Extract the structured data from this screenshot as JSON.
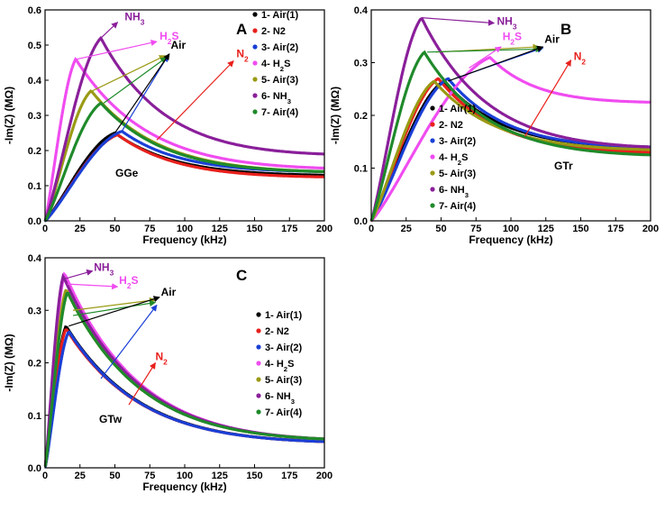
{
  "colors": {
    "air1": "#000000",
    "n2": "#e8201c",
    "air2": "#1a3fd6",
    "h2s": "#f04cf0",
    "air3": "#9a9a14",
    "nh3": "#8a1f9a",
    "air4": "#1f8a2a"
  },
  "chart_data": [
    {
      "panel": "A",
      "type": "scatter",
      "sensor_label": "GGe",
      "xlabel": "Frequency (kHz)",
      "ylabel": "-Im(Z) (MΩ)",
      "xlim": [
        0,
        200
      ],
      "ylim": [
        0,
        0.6
      ],
      "x_ticks": [
        0,
        25,
        50,
        75,
        100,
        125,
        150,
        175,
        200
      ],
      "x_tick_labels": [
        "0",
        "25",
        "50",
        "75",
        "100",
        "125",
        "150",
        "175",
        "200"
      ],
      "y_ticks": [
        0.0,
        0.1,
        0.2,
        0.3,
        0.4,
        0.5,
        0.6
      ],
      "y_tick_labels": [
        "0.0",
        "0.1",
        "0.2",
        "0.3",
        "0.4",
        "0.5",
        "0.6"
      ],
      "legend": [
        "1- Air(1)",
        "2- N2",
        "3- Air(2)",
        "4- H₂S",
        "5- Air(3)",
        "6- NH₃",
        "7- Air(4)"
      ],
      "series": [
        {
          "name": "1- Air(1)",
          "color_key": "air1",
          "peak_x": 50,
          "peak_y": 0.25,
          "end_y": 0.13
        },
        {
          "name": "2- N2",
          "color_key": "n2",
          "peak_x": 52,
          "peak_y": 0.245,
          "end_y": 0.125
        },
        {
          "name": "3- Air(2)",
          "color_key": "air2",
          "peak_x": 55,
          "peak_y": 0.255,
          "end_y": 0.14
        },
        {
          "name": "4- H₂S",
          "color_key": "h2s",
          "peak_x": 22,
          "peak_y": 0.46,
          "end_y": 0.15
        },
        {
          "name": "5- Air(3)",
          "color_key": "air3",
          "peak_x": 33,
          "peak_y": 0.37,
          "end_y": 0.14
        },
        {
          "name": "6- NH₃",
          "color_key": "nh3",
          "peak_x": 40,
          "peak_y": 0.52,
          "end_y": 0.19
        },
        {
          "name": "7- Air(4)",
          "color_key": "air4",
          "peak_x": 40,
          "peak_y": 0.335,
          "end_y": 0.14
        }
      ],
      "annotations": [
        {
          "text": "NH₃",
          "color_key": "nh3",
          "arrow_from": [
            40,
            0.52
          ],
          "arrow_to": [
            52,
            0.565
          ],
          "text_at": [
            57,
            0.57
          ]
        },
        {
          "text": "H₂S",
          "color_key": "h2s",
          "arrow_from": [
            23,
            0.46
          ],
          "arrow_to": [
            80,
            0.51
          ],
          "text_at": [
            82,
            0.515
          ]
        },
        {
          "text": "Air",
          "color_key": "air1",
          "arrow_from": [
            50,
            0.25
          ],
          "arrow_to": [
            89,
            0.475
          ],
          "text_at": [
            90,
            0.49
          ]
        },
        {
          "text": "N₂",
          "color_key": "n2",
          "arrow_from": [
            80,
            0.23
          ],
          "arrow_to": [
            135,
            0.455
          ],
          "text_at": [
            137,
            0.465
          ]
        }
      ],
      "extra_arrows": [
        {
          "color_key": "air2",
          "from": [
            55,
            0.255
          ],
          "to": [
            88,
            0.47
          ]
        },
        {
          "color_key": "air3",
          "from": [
            34,
            0.37
          ],
          "to": [
            86,
            0.47
          ]
        },
        {
          "color_key": "air4",
          "from": [
            42,
            0.335
          ],
          "to": [
            87,
            0.465
          ]
        }
      ]
    },
    {
      "panel": "B",
      "type": "scatter",
      "sensor_label": "GTr",
      "xlabel": "Frequency (kHz)",
      "ylabel": "-Im(Z) (MΩ)",
      "xlim": [
        0,
        200
      ],
      "ylim": [
        0,
        0.4
      ],
      "x_ticks": [
        0,
        25,
        50,
        75,
        100,
        125,
        150,
        175,
        200
      ],
      "x_tick_labels": [
        "0",
        "25",
        "50",
        "75",
        "100",
        "125",
        "150",
        "175",
        "200"
      ],
      "y_ticks": [
        0.0,
        0.1,
        0.2,
        0.3,
        0.4
      ],
      "y_tick_labels": [
        "0.0",
        "0.1",
        "0.2",
        "0.3",
        "0.4"
      ],
      "legend": [
        "1- Air(1)",
        "2- N2",
        "3- Air(2)",
        "4- H₂S",
        "5- Air(3)",
        "6- NH₃",
        "7- Air(4)"
      ],
      "series": [
        {
          "name": "1- Air(1)",
          "color_key": "air1",
          "peak_x": 52,
          "peak_y": 0.265,
          "end_y": 0.14
        },
        {
          "name": "2- N2",
          "color_key": "n2",
          "peak_x": 48,
          "peak_y": 0.27,
          "end_y": 0.13
        },
        {
          "name": "3- Air(2)",
          "color_key": "air2",
          "peak_x": 55,
          "peak_y": 0.27,
          "end_y": 0.14
        },
        {
          "name": "4- H₂S",
          "color_key": "h2s",
          "peak_x": 85,
          "peak_y": 0.31,
          "end_y": 0.225
        },
        {
          "name": "5- Air(3)",
          "color_key": "air3",
          "peak_x": 45,
          "peak_y": 0.265,
          "end_y": 0.135
        },
        {
          "name": "6- NH₃",
          "color_key": "nh3",
          "peak_x": 36,
          "peak_y": 0.385,
          "end_y": 0.14
        },
        {
          "name": "7- Air(4)",
          "color_key": "air4",
          "peak_x": 38,
          "peak_y": 0.32,
          "end_y": 0.125
        }
      ],
      "annotations": [
        {
          "text": "NH₃",
          "color_key": "nh3",
          "arrow_from": [
            37,
            0.385
          ],
          "arrow_to": [
            88,
            0.375
          ],
          "text_at": [
            90,
            0.372
          ]
        },
        {
          "text": "H₂S",
          "color_key": "h2s",
          "arrow_from": [
            70,
            0.29
          ],
          "arrow_to": [
            93,
            0.33
          ],
          "text_at": [
            94,
            0.343
          ]
        },
        {
          "text": "Air",
          "color_key": "air1",
          "arrow_from": [
            55,
            0.265
          ],
          "arrow_to": [
            123,
            0.33
          ],
          "text_at": [
            124,
            0.338
          ]
        },
        {
          "text": "N₂",
          "color_key": "n2",
          "arrow_from": [
            110,
            0.16
          ],
          "arrow_to": [
            143,
            0.305
          ],
          "text_at": [
            145,
            0.305
          ]
        }
      ],
      "extra_arrows": [
        {
          "color_key": "air2",
          "from": [
            60,
            0.27
          ],
          "to": [
            123,
            0.328
          ]
        },
        {
          "color_key": "air3",
          "from": [
            46,
            0.32
          ],
          "to": [
            120,
            0.33
          ]
        },
        {
          "color_key": "air4",
          "from": [
            40,
            0.32
          ],
          "to": [
            122,
            0.326
          ]
        }
      ]
    },
    {
      "panel": "C",
      "type": "scatter",
      "sensor_label": "GTw",
      "xlabel": "Frequency (kHz)",
      "ylabel": "-Im(Z) (MΩ)",
      "xlim": [
        0,
        200
      ],
      "ylim": [
        0,
        0.4
      ],
      "x_ticks": [
        0,
        25,
        50,
        75,
        100,
        125,
        150,
        175,
        200
      ],
      "x_tick_labels": [
        "0",
        "25",
        "50",
        "75",
        "100",
        "125",
        "150",
        "175",
        "200"
      ],
      "y_ticks": [
        0.0,
        0.1,
        0.2,
        0.3,
        0.4
      ],
      "y_tick_labels": [
        "0.0",
        "0.1",
        "0.2",
        "0.3",
        "0.4"
      ],
      "legend": [
        "1- Air(1)",
        "2- N2",
        "3- Air(2)",
        "4- H₂S",
        "5- Air(3)",
        "6- NH₃",
        "7- Air(4)"
      ],
      "series": [
        {
          "name": "1- Air(1)",
          "color_key": "air1",
          "peak_x": 15,
          "peak_y": 0.27,
          "end_y": 0.05
        },
        {
          "name": "2- N2",
          "color_key": "n2",
          "peak_x": 15,
          "peak_y": 0.265,
          "end_y": 0.05
        },
        {
          "name": "3- Air(2)",
          "color_key": "air2",
          "peak_x": 17,
          "peak_y": 0.26,
          "end_y": 0.05
        },
        {
          "name": "4- H₂S",
          "color_key": "h2s",
          "peak_x": 14,
          "peak_y": 0.37,
          "end_y": 0.055
        },
        {
          "name": "5- Air(3)",
          "color_key": "air3",
          "peak_x": 15,
          "peak_y": 0.34,
          "end_y": 0.055
        },
        {
          "name": "6- NH₃",
          "color_key": "nh3",
          "peak_x": 13,
          "peak_y": 0.365,
          "end_y": 0.055
        },
        {
          "name": "7- Air(4)",
          "color_key": "air4",
          "peak_x": 16,
          "peak_y": 0.335,
          "end_y": 0.055
        }
      ],
      "annotations": [
        {
          "text": "NH₃",
          "color_key": "nh3",
          "arrow_from": [
            14,
            0.36
          ],
          "arrow_to": [
            34,
            0.375
          ],
          "text_at": [
            35,
            0.375
          ]
        },
        {
          "text": "H₂S",
          "color_key": "h2s",
          "arrow_from": [
            16,
            0.35
          ],
          "arrow_to": [
            52,
            0.345
          ],
          "text_at": [
            53,
            0.35
          ]
        },
        {
          "text": "Air",
          "color_key": "air1",
          "arrow_from": [
            17,
            0.27
          ],
          "arrow_to": [
            82,
            0.325
          ],
          "text_at": [
            83,
            0.328
          ]
        },
        {
          "text": "N₂",
          "color_key": "n2",
          "arrow_from": [
            60,
            0.12
          ],
          "arrow_to": [
            79,
            0.2
          ],
          "text_at": [
            79,
            0.205
          ]
        }
      ],
      "extra_arrows": [
        {
          "color_key": "air2",
          "from": [
            40,
            0.17
          ],
          "to": [
            80,
            0.31
          ]
        },
        {
          "color_key": "air3",
          "from": [
            20,
            0.3
          ],
          "to": [
            79,
            0.32
          ]
        },
        {
          "color_key": "air4",
          "from": [
            20,
            0.29
          ],
          "to": [
            79,
            0.315
          ]
        }
      ]
    }
  ]
}
